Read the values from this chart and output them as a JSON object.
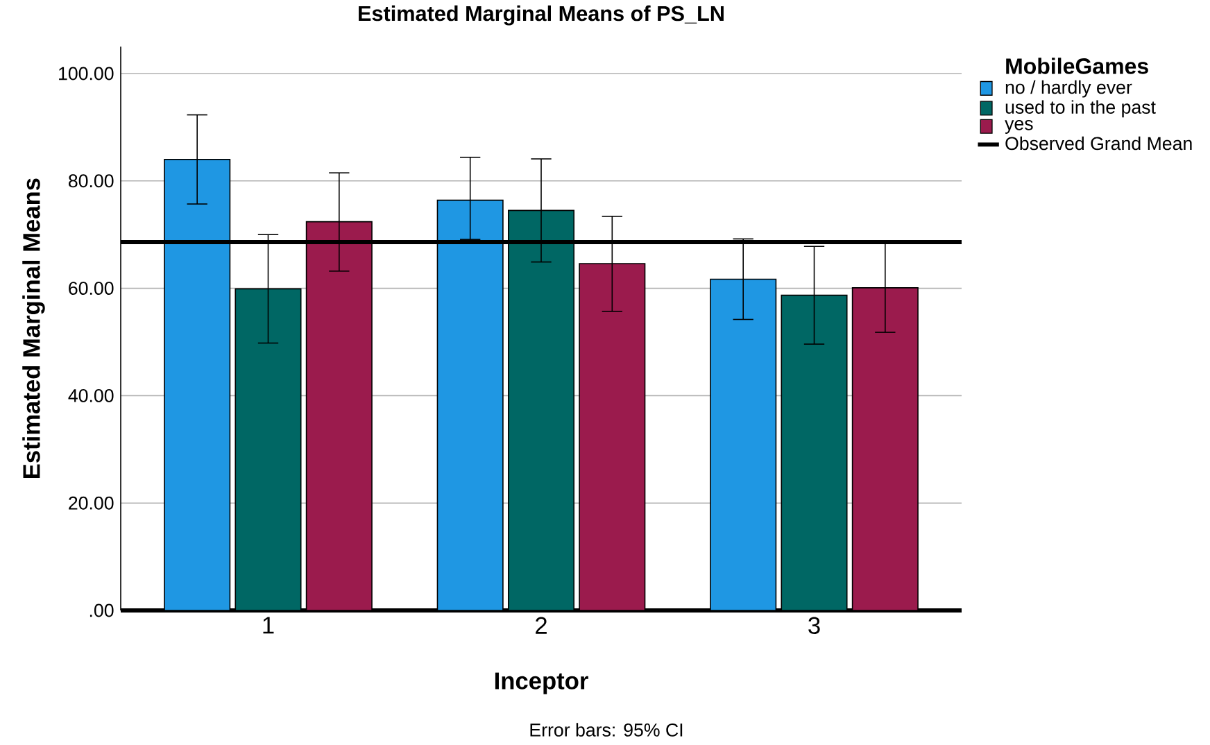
{
  "chart_data": {
    "type": "bar",
    "title": "Estimated Marginal Means of PS_LN",
    "xlabel": "Inceptor",
    "ylabel": "Estimated Marginal Means",
    "legend_title": "MobileGames",
    "categories": [
      "1",
      "2",
      "3"
    ],
    "series": [
      {
        "name": "no / hardly ever",
        "color": "#1f97e3",
        "values": [
          84.0,
          76.4,
          61.7
        ],
        "errors": [
          [
            75.7,
            92.3
          ],
          [
            69.1,
            84.4
          ],
          [
            54.2,
            69.2
          ]
        ]
      },
      {
        "name": "used to in the past",
        "color": "#006764",
        "values": [
          59.9,
          74.5,
          58.7
        ],
        "errors": [
          [
            49.8,
            70.0
          ],
          [
            64.9,
            84.1
          ],
          [
            49.6,
            67.8
          ]
        ]
      },
      {
        "name": "yes",
        "color": "#9b1b4d",
        "values": [
          72.4,
          64.6,
          60.1
        ],
        "errors": [
          [
            63.2,
            81.5
          ],
          [
            55.7,
            73.4
          ],
          [
            51.8,
            68.4
          ]
        ]
      }
    ],
    "ylim": [
      0,
      105
    ],
    "yticks": [
      {
        "value": 0,
        "label": ".00"
      },
      {
        "value": 20,
        "label": "20.00"
      },
      {
        "value": 40,
        "label": "40.00"
      },
      {
        "value": 60,
        "label": "60.00"
      },
      {
        "value": 80,
        "label": "80.00"
      },
      {
        "value": 100,
        "label": "100.00"
      }
    ],
    "ref_lines": [
      {
        "axis": "y",
        "value": 68.6,
        "label": "Observed Grand Mean",
        "color": "#000000"
      }
    ],
    "grid": "y",
    "legend": "top right",
    "annotations": [
      "Error bars: 95% CI"
    ]
  }
}
